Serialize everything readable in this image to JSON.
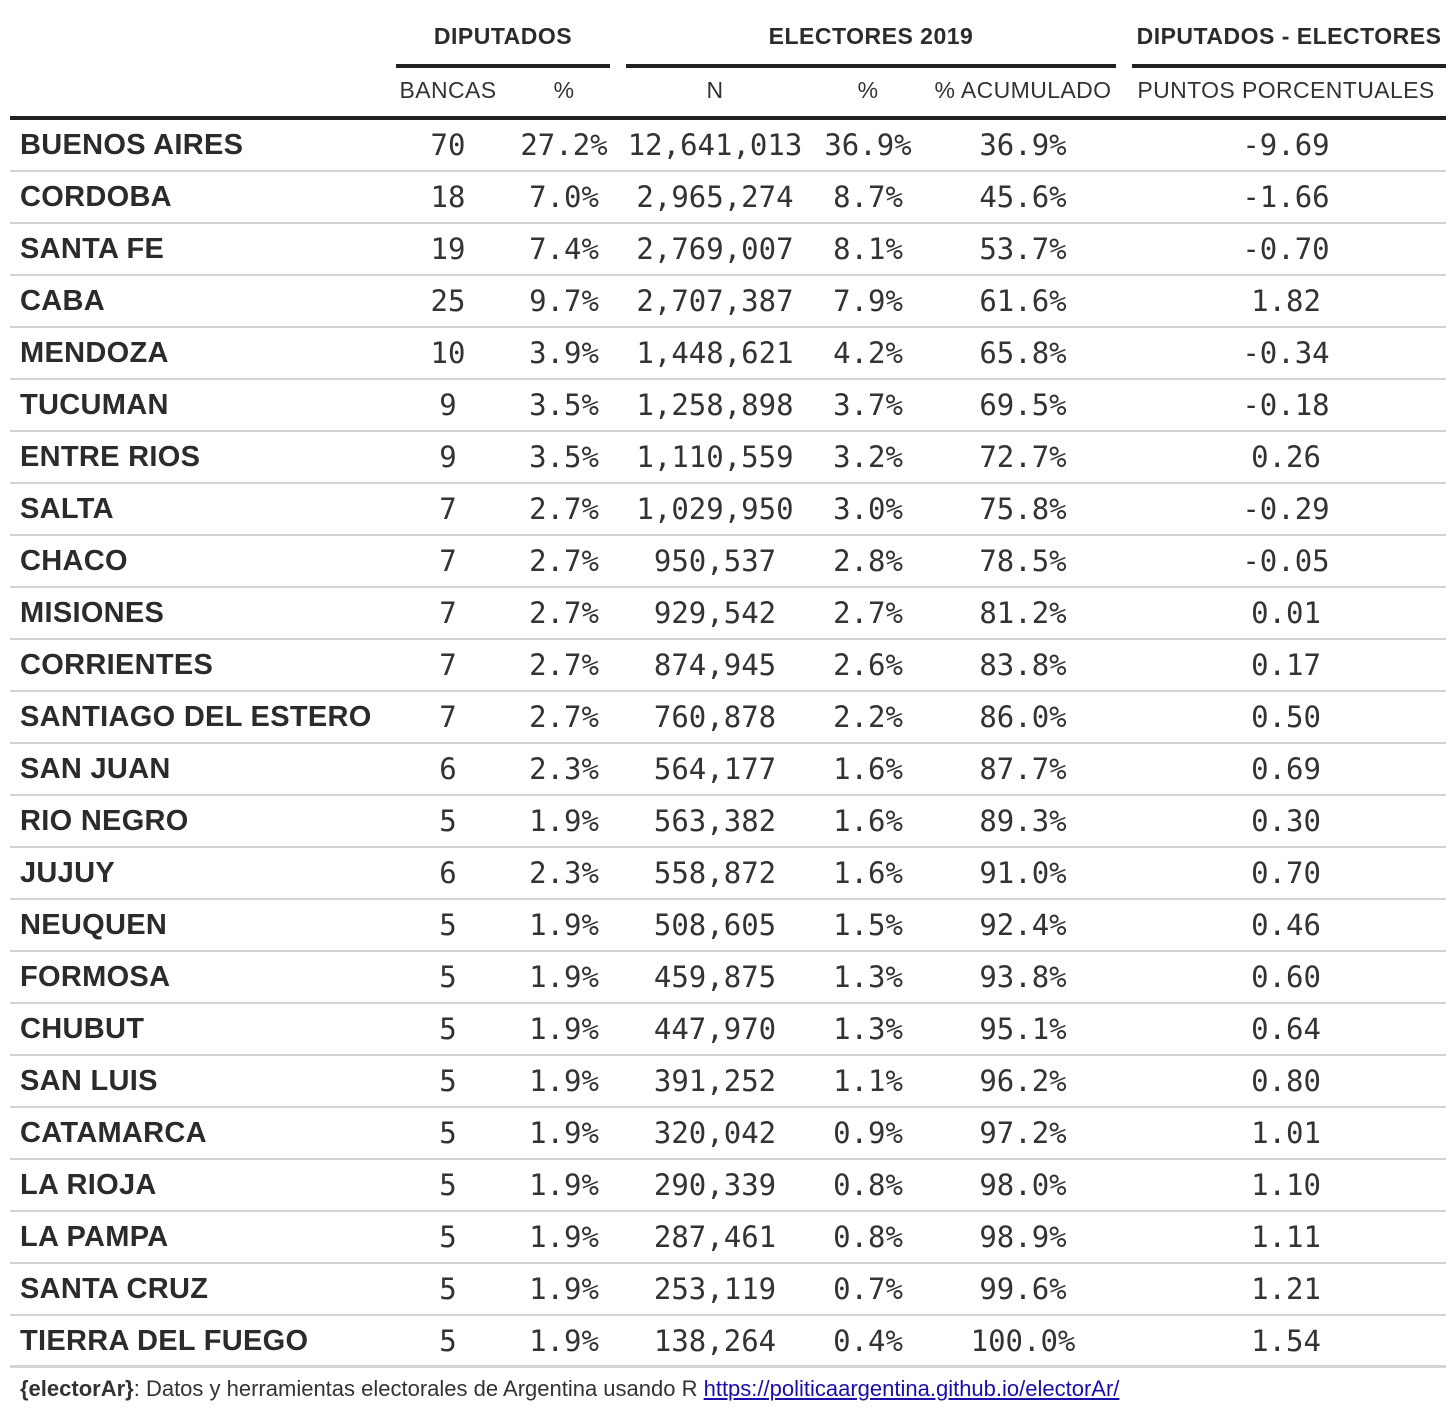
{
  "headers": {
    "groups": {
      "diputados": "DIPUTADOS",
      "electores": "ELECTORES 2019",
      "diferencia": "DIPUTADOS - ELECTORES"
    },
    "columns": {
      "bancas": "BANCAS",
      "diputados_pct": "%",
      "n": "N",
      "electores_pct": "%",
      "acumulado": "% ACUMULADO",
      "puntos": "PUNTOS PORCENTUALES"
    }
  },
  "rows": [
    {
      "provincia": "BUENOS AIRES",
      "bancas": "70",
      "diputados_pct": "27.2%",
      "n": "12,641,013",
      "electores_pct": "36.9%",
      "acumulado": "36.9%",
      "puntos": "-9.69"
    },
    {
      "provincia": "CORDOBA",
      "bancas": "18",
      "diputados_pct": "7.0%",
      "n": "2,965,274",
      "electores_pct": "8.7%",
      "acumulado": "45.6%",
      "puntos": "-1.66"
    },
    {
      "provincia": "SANTA FE",
      "bancas": "19",
      "diputados_pct": "7.4%",
      "n": "2,769,007",
      "electores_pct": "8.1%",
      "acumulado": "53.7%",
      "puntos": "-0.70"
    },
    {
      "provincia": "CABA",
      "bancas": "25",
      "diputados_pct": "9.7%",
      "n": "2,707,387",
      "electores_pct": "7.9%",
      "acumulado": "61.6%",
      "puntos": "1.82"
    },
    {
      "provincia": "MENDOZA",
      "bancas": "10",
      "diputados_pct": "3.9%",
      "n": "1,448,621",
      "electores_pct": "4.2%",
      "acumulado": "65.8%",
      "puntos": "-0.34"
    },
    {
      "provincia": "TUCUMAN",
      "bancas": "9",
      "diputados_pct": "3.5%",
      "n": "1,258,898",
      "electores_pct": "3.7%",
      "acumulado": "69.5%",
      "puntos": "-0.18"
    },
    {
      "provincia": "ENTRE RIOS",
      "bancas": "9",
      "diputados_pct": "3.5%",
      "n": "1,110,559",
      "electores_pct": "3.2%",
      "acumulado": "72.7%",
      "puntos": "0.26"
    },
    {
      "provincia": "SALTA",
      "bancas": "7",
      "diputados_pct": "2.7%",
      "n": "1,029,950",
      "electores_pct": "3.0%",
      "acumulado": "75.8%",
      "puntos": "-0.29"
    },
    {
      "provincia": "CHACO",
      "bancas": "7",
      "diputados_pct": "2.7%",
      "n": "950,537",
      "electores_pct": "2.8%",
      "acumulado": "78.5%",
      "puntos": "-0.05"
    },
    {
      "provincia": "MISIONES",
      "bancas": "7",
      "diputados_pct": "2.7%",
      "n": "929,542",
      "electores_pct": "2.7%",
      "acumulado": "81.2%",
      "puntos": "0.01"
    },
    {
      "provincia": "CORRIENTES",
      "bancas": "7",
      "diputados_pct": "2.7%",
      "n": "874,945",
      "electores_pct": "2.6%",
      "acumulado": "83.8%",
      "puntos": "0.17"
    },
    {
      "provincia": "SANTIAGO DEL ESTERO",
      "bancas": "7",
      "diputados_pct": "2.7%",
      "n": "760,878",
      "electores_pct": "2.2%",
      "acumulado": "86.0%",
      "puntos": "0.50"
    },
    {
      "provincia": "SAN JUAN",
      "bancas": "6",
      "diputados_pct": "2.3%",
      "n": "564,177",
      "electores_pct": "1.6%",
      "acumulado": "87.7%",
      "puntos": "0.69"
    },
    {
      "provincia": "RIO NEGRO",
      "bancas": "5",
      "diputados_pct": "1.9%",
      "n": "563,382",
      "electores_pct": "1.6%",
      "acumulado": "89.3%",
      "puntos": "0.30"
    },
    {
      "provincia": "JUJUY",
      "bancas": "6",
      "diputados_pct": "2.3%",
      "n": "558,872",
      "electores_pct": "1.6%",
      "acumulado": "91.0%",
      "puntos": "0.70"
    },
    {
      "provincia": "NEUQUEN",
      "bancas": "5",
      "diputados_pct": "1.9%",
      "n": "508,605",
      "electores_pct": "1.5%",
      "acumulado": "92.4%",
      "puntos": "0.46"
    },
    {
      "provincia": "FORMOSA",
      "bancas": "5",
      "diputados_pct": "1.9%",
      "n": "459,875",
      "electores_pct": "1.3%",
      "acumulado": "93.8%",
      "puntos": "0.60"
    },
    {
      "provincia": "CHUBUT",
      "bancas": "5",
      "diputados_pct": "1.9%",
      "n": "447,970",
      "electores_pct": "1.3%",
      "acumulado": "95.1%",
      "puntos": "0.64"
    },
    {
      "provincia": "SAN LUIS",
      "bancas": "5",
      "diputados_pct": "1.9%",
      "n": "391,252",
      "electores_pct": "1.1%",
      "acumulado": "96.2%",
      "puntos": "0.80"
    },
    {
      "provincia": "CATAMARCA",
      "bancas": "5",
      "diputados_pct": "1.9%",
      "n": "320,042",
      "electores_pct": "0.9%",
      "acumulado": "97.2%",
      "puntos": "1.01"
    },
    {
      "provincia": "LA RIOJA",
      "bancas": "5",
      "diputados_pct": "1.9%",
      "n": "290,339",
      "electores_pct": "0.8%",
      "acumulado": "98.0%",
      "puntos": "1.10"
    },
    {
      "provincia": "LA PAMPA",
      "bancas": "5",
      "diputados_pct": "1.9%",
      "n": "287,461",
      "electores_pct": "0.8%",
      "acumulado": "98.9%",
      "puntos": "1.11"
    },
    {
      "provincia": "SANTA CRUZ",
      "bancas": "5",
      "diputados_pct": "1.9%",
      "n": "253,119",
      "electores_pct": "0.7%",
      "acumulado": "99.6%",
      "puntos": "1.21"
    },
    {
      "provincia": "TIERRA DEL FUEGO",
      "bancas": "5",
      "diputados_pct": "1.9%",
      "n": "138,264",
      "electores_pct": "0.4%",
      "acumulado": "100.0%",
      "puntos": "1.54"
    }
  ],
  "footer": {
    "package": "{electorAr}",
    "text": ": Datos y herramientas electorales de Argentina usando R ",
    "link": "https://politicaargentina.github.io/electorAr/"
  }
}
